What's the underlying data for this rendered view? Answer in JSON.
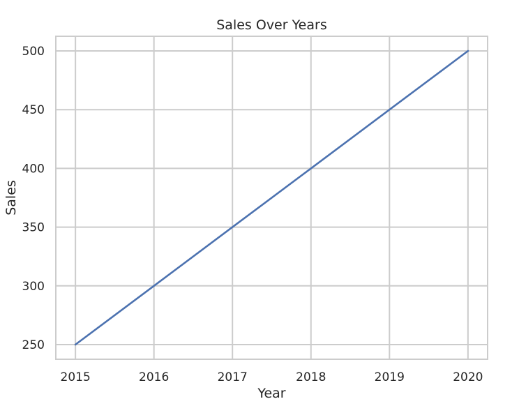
{
  "chart_data": {
    "type": "line",
    "title": "Sales Over Years",
    "xlabel": "Year",
    "ylabel": "Sales",
    "x": [
      2015,
      2016,
      2017,
      2018,
      2019,
      2020
    ],
    "series": [
      {
        "values": [
          250,
          300,
          350,
          400,
          450,
          500
        ],
        "color": "#4c72b0"
      }
    ],
    "xlim": [
      2014.75,
      2020.25
    ],
    "ylim": [
      237.5,
      512.5
    ],
    "xticks": [
      2015,
      2016,
      2017,
      2018,
      2019,
      2020
    ],
    "yticks": [
      250,
      300,
      350,
      400,
      450,
      500
    ],
    "grid": true,
    "legend": "none"
  }
}
